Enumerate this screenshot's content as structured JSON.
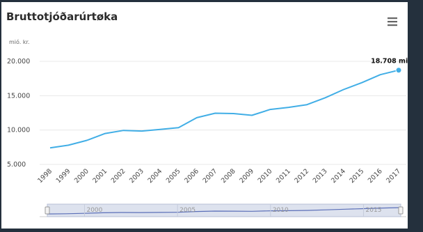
{
  "colors": {
    "line": "#41aee6",
    "grid": "#e8e8e8",
    "navigator_fill": "#dde2ee",
    "navigator_line": "#5b6fb8",
    "page_background": "#24303d"
  },
  "menu_icon": "hamburger-menu-icon",
  "chart_data": {
    "type": "line",
    "title": "Bruttotjóðarúrtøka",
    "ylabel": "mió. kr.",
    "xlabel": "",
    "categories": [
      "1998",
      "1999",
      "2000",
      "2001",
      "2002",
      "2003",
      "2004",
      "2005",
      "2006",
      "2007",
      "2008",
      "2009",
      "2010",
      "2011",
      "2012",
      "2013",
      "2014",
      "2015",
      "2016",
      "2017"
    ],
    "series": [
      {
        "values": [
          7400,
          7800,
          8500,
          9500,
          9950,
          9850,
          10100,
          10350,
          11800,
          12450,
          12400,
          12150,
          13000,
          13300,
          13700,
          14700,
          15900,
          16900,
          18050,
          18708
        ]
      }
    ],
    "ylim": [
      5000,
      20000
    ],
    "yticks": [
      "5.000",
      "10.000",
      "15.000",
      "20.000"
    ],
    "ytick_values": [
      5000,
      10000,
      15000,
      20000
    ],
    "grid": true,
    "legend": "none",
    "last_point_label": "18.708 mió. kr.",
    "navigator": {
      "tick_labels": [
        "2000",
        "2005",
        "2010",
        "2015"
      ],
      "tick_values": [
        2000,
        2005,
        2010,
        2015
      ]
    }
  }
}
